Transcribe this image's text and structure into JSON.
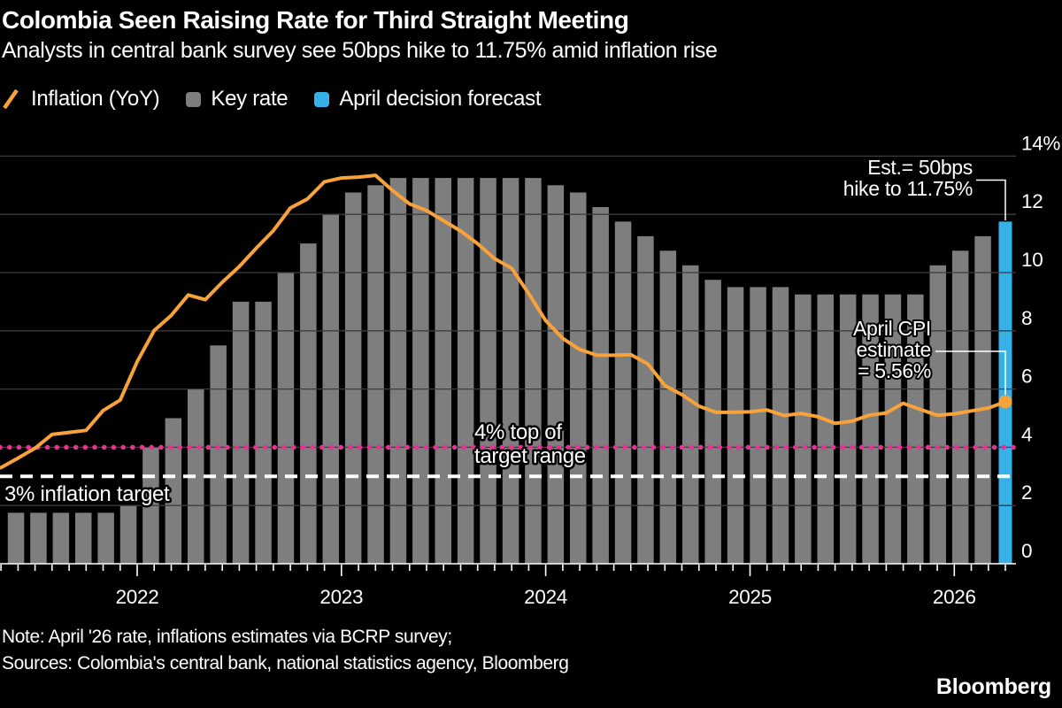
{
  "header": {
    "title": "Colombia Seen Raising Rate for Third Straight Meeting",
    "subtitle": "Analysts in central bank survey see 50bps hike to 11.75% amid inflation rise"
  },
  "legend": [
    {
      "label": "Inflation (YoY)",
      "swatch": "line",
      "color": "#f7a23a"
    },
    {
      "label": "Key rate",
      "swatch": "square",
      "color": "#7e7e7e"
    },
    {
      "label": "April decision forecast",
      "swatch": "square",
      "color": "#36b1e8"
    }
  ],
  "chart_data": {
    "type": "bar+line",
    "title": "Colombia key rate and inflation",
    "ylim": [
      0,
      14
    ],
    "grid": true,
    "legend_position": "top",
    "y_axis": {
      "ticks": [
        0,
        2,
        4,
        6,
        8,
        10,
        12,
        14
      ],
      "top_label": "14%",
      "unit": "%"
    },
    "x_axis": {
      "year_labels": [
        "2022",
        "2023",
        "2024",
        "2025",
        "2026"
      ],
      "start_month": "2021-05",
      "end_month": "2026-04"
    },
    "key_rate_bars": {
      "label": "Key rate",
      "unit": "%",
      "color": "#7e7e7e",
      "values": [
        1.75,
        1.75,
        1.75,
        1.75,
        1.75,
        2.0,
        4.0,
        5.0,
        6.0,
        7.5,
        9.0,
        9.0,
        10.0,
        11.0,
        12.0,
        12.75,
        13.0,
        13.25,
        13.25,
        13.25,
        13.25,
        13.25,
        13.25,
        13.25,
        13.0,
        12.75,
        12.25,
        11.75,
        11.25,
        10.75,
        10.25,
        9.75,
        9.5,
        9.5,
        9.5,
        9.25,
        9.25,
        9.25,
        9.25,
        9.25,
        9.25,
        10.25,
        10.75,
        11.25
      ]
    },
    "forecast_bar": {
      "label": "April decision forecast",
      "month": "2026-04",
      "value": 11.75,
      "color": "#36b1e8"
    },
    "inflation_line": {
      "label": "Inflation (YoY)",
      "color": "#f7a23a",
      "unit": "%",
      "start_month": "2021-05",
      "monthly_values": [
        3.3,
        3.63,
        3.97,
        4.44,
        4.51,
        4.58,
        5.26,
        5.62,
        6.94,
        8.01,
        8.53,
        9.23,
        9.07,
        9.67,
        10.21,
        10.84,
        11.44,
        12.22,
        12.53,
        13.12,
        13.25,
        13.28,
        13.34,
        12.82,
        12.36,
        12.13,
        11.78,
        11.43,
        10.99,
        10.48,
        10.15,
        9.28,
        8.35,
        7.74,
        7.36,
        7.16,
        7.16,
        7.18,
        6.86,
        6.12,
        5.81,
        5.41,
        5.2,
        5.2,
        5.22,
        5.28,
        5.09,
        5.16,
        5.05,
        4.82,
        4.9,
        5.1,
        5.18,
        5.51,
        5.3,
        5.1,
        5.15,
        5.25,
        5.35,
        5.56
      ],
      "end_value": 5.56
    },
    "reference_lines": [
      {
        "value": 4,
        "style": "dotted",
        "color": "#ee2d96",
        "label": "4% top of target range"
      },
      {
        "value": 3,
        "style": "dashed",
        "color": "#ffffff",
        "label": "3% inflation target"
      }
    ]
  },
  "annotations": {
    "est_line1": "Est.= 50bps",
    "est_line2": "hike to 11.75%",
    "cpi_line1": "April CPI",
    "cpi_line2": "estimate",
    "cpi_line3": "= 5.56%",
    "target4_line1": "4% top of",
    "target4_line2": "target range",
    "target3": "3% inflation target"
  },
  "footer": {
    "note": "Note: April '26 rate, inflations estimates via BCRP survey;",
    "sources": "Sources: Colombia's central bank, national statistics agency, Bloomberg",
    "logo": "Bloomberg"
  }
}
